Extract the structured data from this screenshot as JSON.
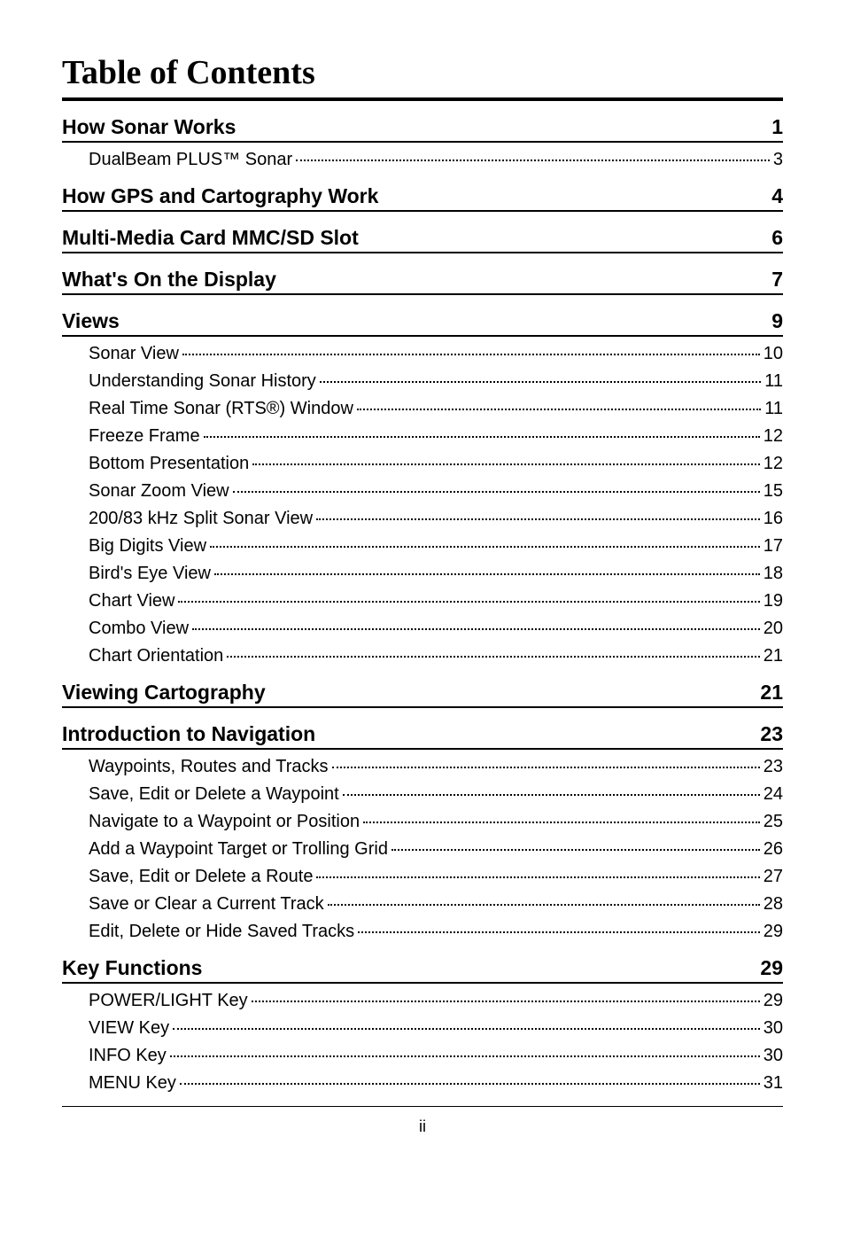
{
  "title": "Table of Contents",
  "footer": "ii",
  "sections": [
    {
      "heading": "How Sonar Works",
      "page": "1",
      "entries": [
        {
          "label": "DualBeam PLUS™ Sonar",
          "page": "3"
        }
      ]
    },
    {
      "heading": "How GPS and Cartography Work",
      "page": "4",
      "entries": []
    },
    {
      "heading": "Multi-Media Card MMC/SD Slot",
      "page": "6",
      "entries": []
    },
    {
      "heading": "What's On the Display",
      "page": "7",
      "entries": []
    },
    {
      "heading": "Views",
      "page": "9",
      "entries": [
        {
          "label": "Sonar View",
          "page": "10"
        },
        {
          "label": "Understanding Sonar History",
          "page": "11"
        },
        {
          "label": "Real Time Sonar (RTS®) Window",
          "page": "11"
        },
        {
          "label": "Freeze Frame",
          "page": "12"
        },
        {
          "label": "Bottom Presentation",
          "page": "12"
        },
        {
          "label": "Sonar Zoom View",
          "page": "15"
        },
        {
          "label": "200/83 kHz Split Sonar View",
          "page": "16"
        },
        {
          "label": "Big Digits View",
          "page": "17"
        },
        {
          "label": "Bird's Eye View",
          "page": "18"
        },
        {
          "label": "Chart View",
          "page": "19"
        },
        {
          "label": "Combo View",
          "page": "20"
        },
        {
          "label": "Chart Orientation",
          "page": "21"
        }
      ]
    },
    {
      "heading": "Viewing Cartography",
      "page": "21",
      "entries": []
    },
    {
      "heading": "Introduction to Navigation",
      "page": "23",
      "entries": [
        {
          "label": "Waypoints, Routes and Tracks",
          "page": "23"
        },
        {
          "label": "Save, Edit or Delete a Waypoint",
          "page": "24"
        },
        {
          "label": "Navigate to a Waypoint or Position",
          "page": "25"
        },
        {
          "label": "Add a Waypoint Target or Trolling Grid",
          "page": "26"
        },
        {
          "label": "Save, Edit or Delete a Route",
          "page": "27"
        },
        {
          "label": "Save or Clear a Current Track",
          "page": "28"
        },
        {
          "label": "Edit, Delete or Hide Saved Tracks",
          "page": "29"
        }
      ]
    },
    {
      "heading": "Key Functions",
      "page": "29",
      "entries": [
        {
          "label": "POWER/LIGHT Key",
          "page": "29"
        },
        {
          "label": "VIEW Key",
          "page": "30"
        },
        {
          "label": "INFO Key",
          "page": "30"
        },
        {
          "label": "MENU Key",
          "page": "31"
        }
      ]
    }
  ]
}
